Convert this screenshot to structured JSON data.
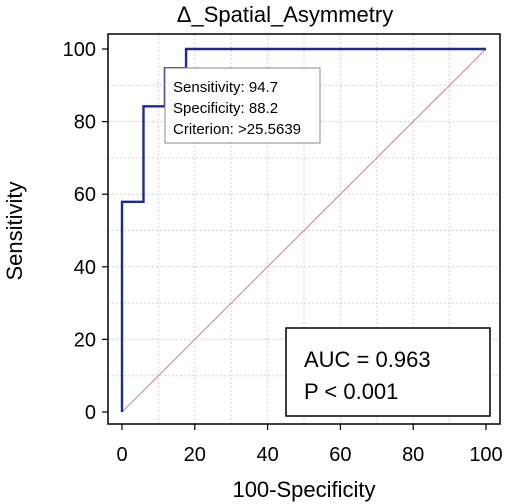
{
  "chart_data": {
    "type": "line",
    "title": "Δ_Spatial_Asymmetry",
    "xlabel": "100-Specificity",
    "ylabel": "Sensitivity",
    "xlim": [
      0,
      100
    ],
    "ylim": [
      0,
      100
    ],
    "x_ticks": [
      0,
      20,
      40,
      60,
      80,
      100
    ],
    "y_ticks": [
      0,
      20,
      40,
      60,
      80,
      100
    ],
    "grid": true,
    "series": [
      {
        "color": "#1f2a8c",
        "x": [
          0,
          0,
          0,
          5.9,
          5.9,
          11.8,
          11.8,
          17.6,
          17.6,
          100
        ],
        "y": [
          0,
          57.9,
          57.9,
          57.9,
          84.2,
          84.2,
          94.7,
          94.7,
          100,
          100
        ]
      },
      {
        "color": "#c98a9e",
        "x": [
          0,
          100
        ],
        "y": [
          0,
          100
        ]
      }
    ],
    "operating_point": {
      "sensitivity_text": "Sensitivity: 94.7",
      "specificity_text": "Specificity: 88.2",
      "criterion_text": "Criterion: >25.5639"
    },
    "stats": {
      "auc_text": "AUC = 0.963",
      "p_text": "P < 0.001"
    }
  }
}
